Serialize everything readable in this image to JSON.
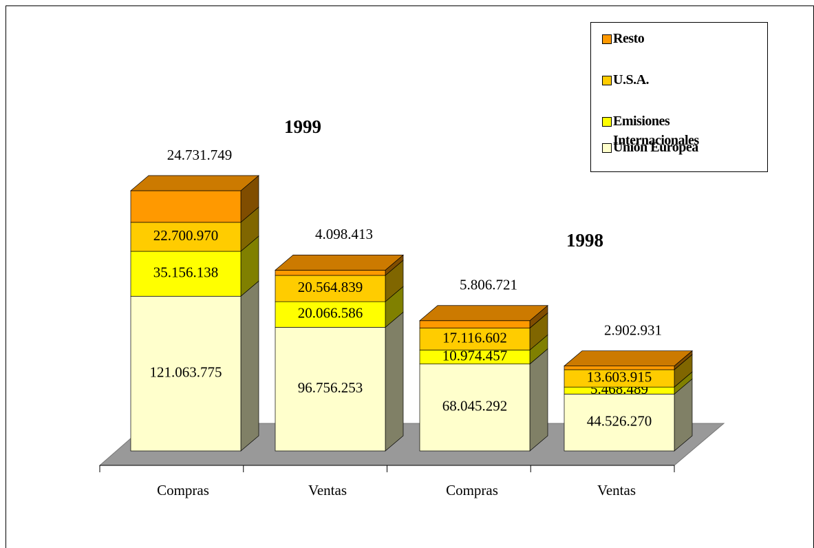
{
  "chart_data": {
    "type": "bar3d_stacked",
    "categories": [
      "Compras",
      "Ventas",
      "Compras",
      "Ventas"
    ],
    "annotations": [
      {
        "text": "1999"
      },
      {
        "text": "1998"
      }
    ],
    "series": [
      {
        "name": "Unión Europea",
        "color": "#ffffcc",
        "values": [
          121063775,
          96756253,
          68045292,
          44526270
        ],
        "value_labels": [
          "121.063.775",
          "96.756.253",
          "68.045.292",
          "44.526.270"
        ]
      },
      {
        "name": "Emisiones Internacionales",
        "color": "#ffff00",
        "values": [
          35156138,
          20066586,
          10974457,
          5468489
        ],
        "value_labels": [
          "35.156.138",
          "20.066.586",
          "10.974.457",
          "5.468.489"
        ]
      },
      {
        "name": "U.S.A.",
        "color": "#ffcc00",
        "values": [
          22700970,
          20564839,
          17116602,
          13603915
        ],
        "value_labels": [
          "22.700.970",
          "20.564.839",
          "17.116.602",
          "13.603.915"
        ]
      },
      {
        "name": "Resto",
        "color": "#ff9900",
        "values": [
          24731749,
          4098413,
          5806721,
          2902931
        ],
        "value_labels": [
          "24.731.749",
          "4.098.413",
          "5.806.721",
          "2.902.931"
        ]
      }
    ],
    "legend": "top-right"
  }
}
